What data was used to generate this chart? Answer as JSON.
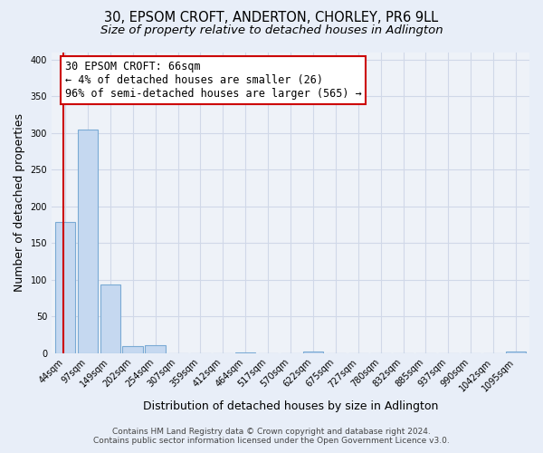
{
  "title": "30, EPSOM CROFT, ANDERTON, CHORLEY, PR6 9LL",
  "subtitle": "Size of property relative to detached houses in Adlington",
  "xlabel": "Distribution of detached houses by size in Adlington",
  "ylabel": "Number of detached properties",
  "bar_labels": [
    "44sqm",
    "97sqm",
    "149sqm",
    "202sqm",
    "254sqm",
    "307sqm",
    "359sqm",
    "412sqm",
    "464sqm",
    "517sqm",
    "570sqm",
    "622sqm",
    "675sqm",
    "727sqm",
    "780sqm",
    "832sqm",
    "885sqm",
    "937sqm",
    "990sqm",
    "1042sqm",
    "1095sqm"
  ],
  "bar_values": [
    178,
    305,
    93,
    9,
    11,
    0,
    0,
    0,
    1,
    0,
    0,
    2,
    0,
    0,
    0,
    0,
    0,
    0,
    0,
    0,
    2
  ],
  "bar_color": "#c5d8f0",
  "bar_edgecolor": "#7aaad4",
  "annotation_box_text": "30 EPSOM CROFT: 66sqm\n← 4% of detached houses are smaller (26)\n96% of semi-detached houses are larger (565) →",
  "annotation_box_edgecolor": "#cc0000",
  "annotation_box_facecolor": "#ffffff",
  "vline_color": "#cc0000",
  "vline_x": -0.08,
  "ylim": [
    0,
    410
  ],
  "yticks": [
    0,
    50,
    100,
    150,
    200,
    250,
    300,
    350,
    400
  ],
  "footer_line1": "Contains HM Land Registry data © Crown copyright and database right 2024.",
  "footer_line2": "Contains public sector information licensed under the Open Government Licence v3.0.",
  "bg_color": "#e8eef8",
  "plot_bg_color": "#eef2f8",
  "grid_color": "#d0d8e8",
  "title_fontsize": 10.5,
  "subtitle_fontsize": 9.5,
  "axis_label_fontsize": 9,
  "tick_fontsize": 7,
  "annotation_fontsize": 8.5,
  "footer_fontsize": 6.5
}
